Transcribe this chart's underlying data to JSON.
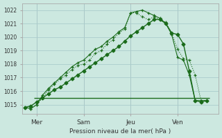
{
  "title": "Pression niveau de la mer( hPa )",
  "ylabel_values": [
    1015,
    1016,
    1017,
    1018,
    1019,
    1020,
    1021,
    1022
  ],
  "ylim": [
    1014.3,
    1022.5
  ],
  "xlim": [
    -0.5,
    33
  ],
  "bg_color": "#cce8e0",
  "grid_color": "#aacccc",
  "line_color": "#1a6b1a",
  "x_tick_positions": [
    2,
    10,
    18,
    26
  ],
  "x_tick_labels": [
    "Mer",
    "Sam",
    "Jeu",
    "Ven"
  ],
  "vline_positions": [
    2,
    10,
    18,
    26
  ],
  "series1_x": [
    0,
    1,
    2,
    3,
    4,
    5,
    6,
    7,
    8,
    9,
    10,
    11,
    12,
    13,
    14,
    15,
    16,
    17,
    18,
    19,
    20,
    21,
    22,
    23,
    24,
    25,
    26,
    27,
    28,
    29,
    30,
    31
  ],
  "series1_y": [
    1014.8,
    1014.7,
    1015.0,
    1015.5,
    1016.1,
    1016.5,
    1016.9,
    1017.2,
    1017.6,
    1017.9,
    1018.0,
    1018.3,
    1018.8,
    1019.0,
    1019.5,
    1019.8,
    1020.3,
    1020.6,
    1021.8,
    1021.8,
    1021.5,
    1021.3,
    1021.5,
    1021.3,
    1021.1,
    1020.3,
    1019.1,
    1018.4,
    1018.3,
    1017.2,
    1015.3,
    1015.3
  ],
  "series2_x": [
    0,
    1,
    2,
    3,
    4,
    5,
    6,
    7,
    8,
    9,
    10,
    11,
    12,
    13,
    14,
    15,
    16,
    17,
    18,
    19,
    20,
    21,
    22,
    23,
    24,
    25,
    26,
    27,
    28,
    29,
    30,
    31
  ],
  "series2_y": [
    1014.8,
    1014.7,
    1015.0,
    1015.7,
    1016.2,
    1016.6,
    1017.0,
    1017.4,
    1017.8,
    1018.1,
    1018.3,
    1018.7,
    1019.1,
    1019.3,
    1019.7,
    1020.0,
    1020.4,
    1020.7,
    1021.8,
    1021.9,
    1022.0,
    1021.8,
    1021.6,
    1021.4,
    1021.0,
    1020.2,
    1018.5,
    1018.3,
    1017.2,
    1015.3,
    1015.3,
    1015.3
  ],
  "series3_x": [
    0,
    1,
    2,
    3,
    4,
    5,
    6,
    7,
    8,
    9,
    10,
    11,
    12,
    13,
    14,
    15,
    16,
    17,
    18,
    19,
    20,
    21,
    22,
    23,
    24,
    25,
    26,
    27,
    28,
    29,
    30,
    31
  ],
  "series3_y": [
    1014.8,
    1014.9,
    1015.2,
    1015.5,
    1015.8,
    1016.1,
    1016.3,
    1016.6,
    1016.9,
    1017.2,
    1017.5,
    1017.8,
    1018.1,
    1018.4,
    1018.7,
    1019.0,
    1019.3,
    1019.7,
    1020.1,
    1020.4,
    1020.7,
    1021.0,
    1021.3,
    1021.3,
    1021.0,
    1020.3,
    1020.2,
    1019.5,
    1017.5,
    1015.3,
    1015.2,
    1015.3
  ],
  "hline_y": 1015.5,
  "hline_x_start": 1.5,
  "hline_x_end": 31.5
}
